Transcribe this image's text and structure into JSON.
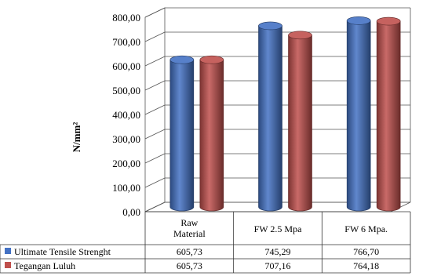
{
  "chart_data": {
    "type": "bar",
    "title": "",
    "xlabel": "",
    "ylabel": "N/mm²",
    "ylim": [
      0,
      800
    ],
    "y_ticks": [
      "0,00",
      "100,00",
      "200,00",
      "300,00",
      "400,00",
      "500,00",
      "600,00",
      "700,00",
      "800,00"
    ],
    "categories": [
      [
        "Raw",
        "Material"
      ],
      [
        "FW 2.5 Mpa"
      ],
      [
        "FW 6 Mpa."
      ]
    ],
    "series": [
      {
        "name": "Ultimate Tensile Strenght",
        "color": "#4472C4",
        "values": [
          605.73,
          745.29,
          766.7
        ],
        "labels": [
          "605,73",
          "745,29",
          "766,70"
        ]
      },
      {
        "name": "Tegangan Luluh",
        "color": "#C0504D",
        "values": [
          605.73,
          707.16,
          764.18
        ],
        "labels": [
          "605,73",
          "707,16",
          "764,18"
        ]
      }
    ],
    "grid": true,
    "legend": "data-table-left",
    "bar_shape": "3d-cylinder"
  }
}
